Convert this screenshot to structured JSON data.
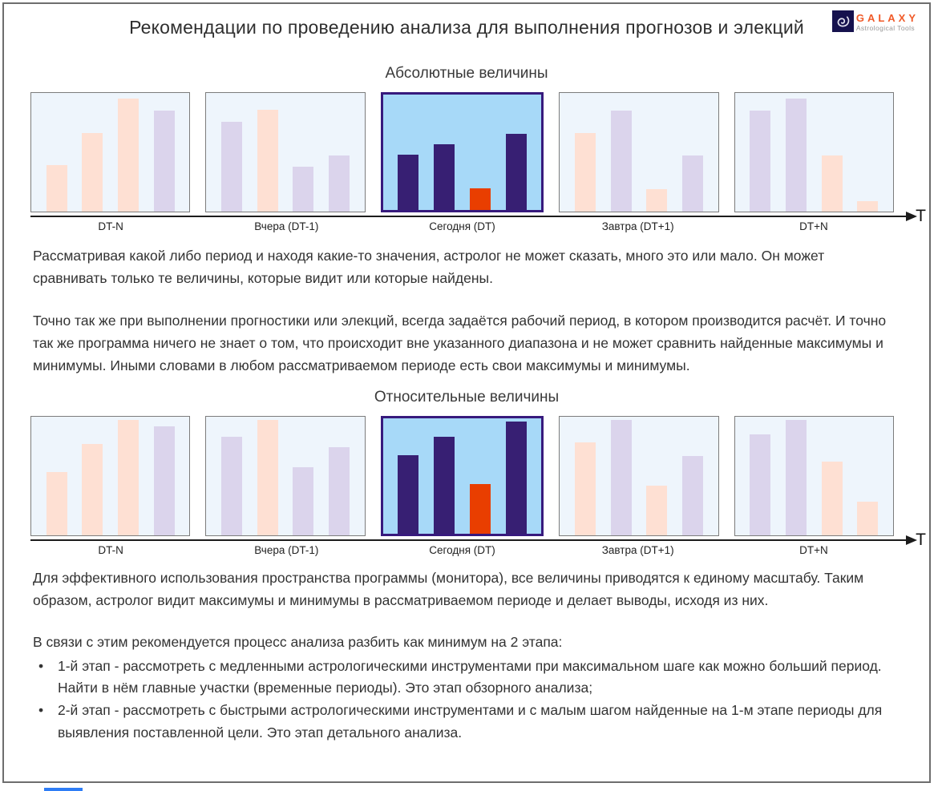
{
  "page": {
    "title": "Рекомендации по проведению анализа для выполнения прогнозов и элекций",
    "logo": {
      "brand": "GALAXY",
      "tagline": "Astrological Tools"
    }
  },
  "axis": {
    "label": "T"
  },
  "colors": {
    "peach": "#fee0d3",
    "lavender": "#dbd4ec",
    "indigo": "#371f73",
    "orange": "#e93e00",
    "panel_bg": "#eef5fc",
    "panel_bg_highlight": "#a7d9f8",
    "panel_border": "#7c7c7c",
    "highlight_border": "#371a7d",
    "logo_navy": "#16124e",
    "logo_orange": "#f05a28"
  },
  "chart_data": [
    {
      "type": "bar",
      "title": "Абсолютные величины",
      "xlabel": "T",
      "ylabel": "",
      "note": "schematic mini bar charts; bar heights are % of panel height",
      "categories": [
        "DT-N",
        "Вчера (DT-1)",
        "Сегодня (DT)",
        "Завтра (DT+1)",
        "DT+N"
      ],
      "panels": [
        {
          "label": "DT-N",
          "highlighted": false,
          "bars": [
            {
              "color": "peach",
              "height_pct": 39
            },
            {
              "color": "peach",
              "height_pct": 66
            },
            {
              "color": "peach",
              "height_pct": 95
            },
            {
              "color": "lavender",
              "height_pct": 85
            }
          ]
        },
        {
          "label": "Вчера (DT-1)",
          "highlighted": false,
          "bars": [
            {
              "color": "lavender",
              "height_pct": 76
            },
            {
              "color": "peach",
              "height_pct": 86
            },
            {
              "color": "lavender",
              "height_pct": 38
            },
            {
              "color": "lavender",
              "height_pct": 47
            }
          ]
        },
        {
          "label": "Сегодня (DT)",
          "highlighted": true,
          "bars": [
            {
              "color": "indigo",
              "height_pct": 48
            },
            {
              "color": "indigo",
              "height_pct": 57
            },
            {
              "color": "orange",
              "height_pct": 19
            },
            {
              "color": "indigo",
              "height_pct": 66
            }
          ]
        },
        {
          "label": "Завтра (DT+1)",
          "highlighted": false,
          "bars": [
            {
              "color": "peach",
              "height_pct": 66
            },
            {
              "color": "lavender",
              "height_pct": 85
            },
            {
              "color": "peach",
              "height_pct": 19
            },
            {
              "color": "lavender",
              "height_pct": 47
            }
          ]
        },
        {
          "label": "DT+N",
          "highlighted": false,
          "bars": [
            {
              "color": "lavender",
              "height_pct": 85
            },
            {
              "color": "lavender",
              "height_pct": 95
            },
            {
              "color": "peach",
              "height_pct": 47
            },
            {
              "color": "peach",
              "height_pct": 9
            }
          ]
        }
      ]
    },
    {
      "type": "bar",
      "title": "Относительные величины",
      "xlabel": "T",
      "ylabel": "",
      "note": "same data rescaled to a common maximum; bar heights are % of panel height",
      "categories": [
        "DT-N",
        "Вчера (DT-1)",
        "Сегодня (DT)",
        "Завтра (DT+1)",
        "DT+N"
      ],
      "panels": [
        {
          "label": "DT-N",
          "highlighted": false,
          "bars": [
            {
              "color": "peach",
              "height_pct": 53
            },
            {
              "color": "peach",
              "height_pct": 77
            },
            {
              "color": "peach",
              "height_pct": 97
            },
            {
              "color": "lavender",
              "height_pct": 92
            }
          ]
        },
        {
          "label": "Вчера (DT-1)",
          "highlighted": false,
          "bars": [
            {
              "color": "lavender",
              "height_pct": 83
            },
            {
              "color": "peach",
              "height_pct": 97
            },
            {
              "color": "lavender",
              "height_pct": 57
            },
            {
              "color": "lavender",
              "height_pct": 74
            }
          ]
        },
        {
          "label": "Сегодня (DT)",
          "highlighted": true,
          "bars": [
            {
              "color": "indigo",
              "height_pct": 68
            },
            {
              "color": "indigo",
              "height_pct": 84
            },
            {
              "color": "orange",
              "height_pct": 43
            },
            {
              "color": "indigo",
              "height_pct": 97
            }
          ]
        },
        {
          "label": "Завтра (DT+1)",
          "highlighted": false,
          "bars": [
            {
              "color": "peach",
              "height_pct": 78
            },
            {
              "color": "lavender",
              "height_pct": 97
            },
            {
              "color": "peach",
              "height_pct": 42
            },
            {
              "color": "lavender",
              "height_pct": 67
            }
          ]
        },
        {
          "label": "DT+N",
          "highlighted": false,
          "bars": [
            {
              "color": "lavender",
              "height_pct": 85
            },
            {
              "color": "lavender",
              "height_pct": 97
            },
            {
              "color": "peach",
              "height_pct": 62
            },
            {
              "color": "peach",
              "height_pct": 28
            }
          ]
        }
      ]
    }
  ],
  "paragraphs": {
    "p1": "Рассматривая какой либо период и находя какие-то значения, астролог не может сказать, много это или мало. Он может сравнивать только те величины, которые видит или которые найдены.",
    "p2": "Точно так же при выполнении прогностики или элекций, всегда задаётся рабочий период, в котором производится расчёт. И точно так же программа ничего не знает о том, что происходит вне указанного диапазона и не может сравнить найденные максимумы и минимумы. Иными словами в любом рассматриваемом периоде есть свои максимумы и минимумы.",
    "p3": "Для эффективного использования пространства программы (монитора), все величины приводятся к единому масштабу. Таким образом, астролог видит максимумы и минимумы в рассматриваемом периоде и делает выводы, исходя из них.",
    "p4_intro": "В связи с этим рекомендуется процесс анализа разбить как минимум на 2 этапа:",
    "bullet1": "1-й этап - рассмотреть с медленными астрологическими инструментами  при максимальном шаге как можно больший период. Найти в нём главные участки (временные периоды). Это этап обзорного анализа;",
    "bullet2": "2-й этап - рассмотреть с быстрыми астрологическими инструментами и с малым шагом найденные на 1-м этапе периоды для выявления поставленной цели. Это этап детального анализа."
  }
}
